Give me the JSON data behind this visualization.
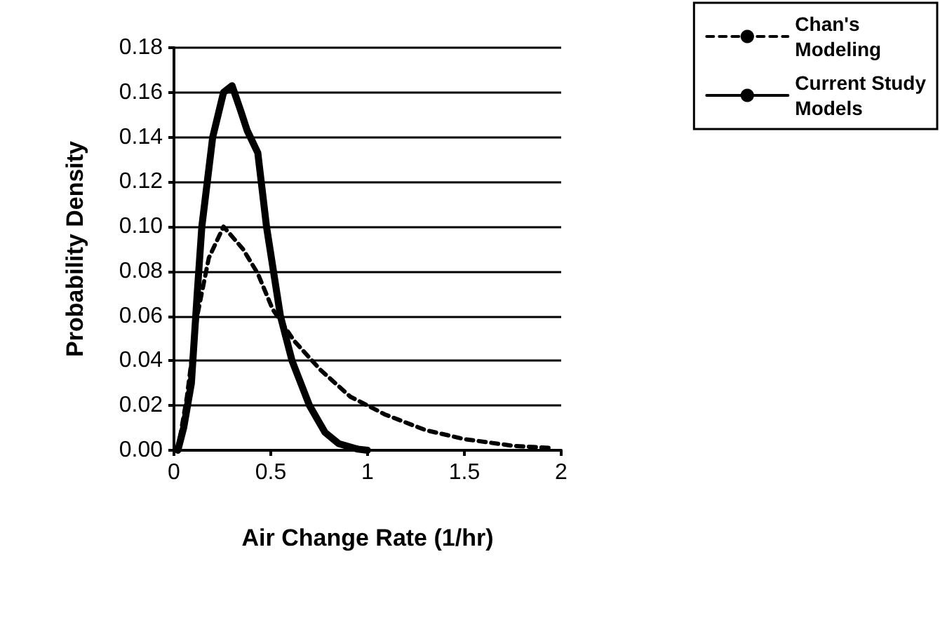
{
  "chart_data": {
    "type": "line",
    "xlabel": "Air Change Rate (1/hr)",
    "ylabel": "Probability Density",
    "xlim": [
      0,
      2
    ],
    "xticks": [
      0,
      {
        "value": 0.5,
        "label": "0.5"
      },
      1,
      {
        "value": 1.5,
        "label": "1.5"
      },
      2
    ],
    "ylim": [
      0,
      0.18
    ],
    "yticks": [
      {
        "value": 0,
        "label": "0.00"
      },
      {
        "value": 0.02,
        "label": "0.02"
      },
      {
        "value": 0.04,
        "label": "0.04"
      },
      {
        "value": 0.06,
        "label": "0.06"
      },
      {
        "value": 0.08,
        "label": "0.08"
      },
      {
        "value": 0.1,
        "label": "0.10"
      },
      {
        "value": 0.12,
        "label": "0.12"
      },
      {
        "value": 0.14,
        "label": "0.14"
      },
      {
        "value": 0.16,
        "label": "0.16"
      },
      {
        "value": 0.18,
        "label": "0.18"
      }
    ],
    "grid": "y",
    "legend": "top right",
    "marker": "none",
    "series": [
      {
        "name": "Chan's Modeling",
        "color": "#000000",
        "line_style": "dashed",
        "x": [
          0.02,
          0.067,
          0.12,
          0.18,
          0.256,
          0.356,
          0.433,
          0.51,
          0.62,
          0.756,
          0.91,
          1.09,
          1.3,
          1.5,
          1.75,
          1.95
        ],
        "values": [
          0,
          0.024,
          0.06,
          0.086,
          0.1,
          0.09,
          0.079,
          0.063,
          0.049,
          0.036,
          0.024,
          0.016,
          0.009,
          0.005,
          0.002,
          0.001
        ]
      },
      {
        "name": "Current Study Models",
        "color": "#000000",
        "line_style": "solid",
        "x": [
          0.02,
          0.05,
          0.09,
          0.12,
          0.144,
          0.2,
          0.256,
          0.3,
          0.344,
          0.378,
          0.433,
          0.478,
          0.55,
          0.61,
          0.7,
          0.78,
          0.85,
          0.95,
          1.0
        ],
        "values": [
          0,
          0.01,
          0.03,
          0.07,
          0.1,
          0.14,
          0.16,
          0.163,
          0.152,
          0.143,
          0.133,
          0.1,
          0.06,
          0.04,
          0.02,
          0.008,
          0.003,
          0.0005,
          0
        ]
      }
    ]
  }
}
